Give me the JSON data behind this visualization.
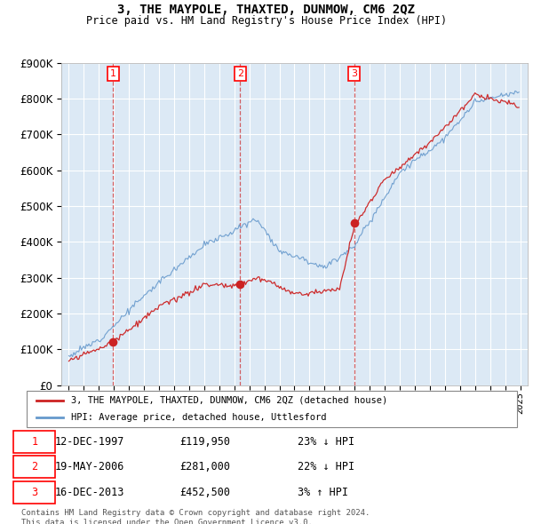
{
  "title": "3, THE MAYPOLE, THAXTED, DUNMOW, CM6 2QZ",
  "subtitle": "Price paid vs. HM Land Registry's House Price Index (HPI)",
  "sale_year_nums": [
    1997.95,
    2006.38,
    2013.96
  ],
  "sale_prices": [
    119950,
    281000,
    452500
  ],
  "sale_labels": [
    "1",
    "2",
    "3"
  ],
  "legend_entries": [
    "3, THE MAYPOLE, THAXTED, DUNMOW, CM6 2QZ (detached house)",
    "HPI: Average price, detached house, Uttlesford"
  ],
  "table_rows": [
    [
      "1",
      "12-DEC-1997",
      "£119,950",
      "23% ↓ HPI"
    ],
    [
      "2",
      "19-MAY-2006",
      "£281,000",
      "22% ↓ HPI"
    ],
    [
      "3",
      "16-DEC-2013",
      "£452,500",
      "3% ↑ HPI"
    ]
  ],
  "footer": "Contains HM Land Registry data © Crown copyright and database right 2024.\nThis data is licensed under the Open Government Licence v3.0.",
  "hpi_color": "#6699cc",
  "price_color": "#cc2222",
  "ylim": [
    0,
    900000
  ],
  "yticks": [
    0,
    100000,
    200000,
    300000,
    400000,
    500000,
    600000,
    700000,
    800000,
    900000
  ],
  "xlim_start": 1994.5,
  "xlim_end": 2025.5,
  "background_color": "#dce9f5",
  "grid_color": "#ffffff"
}
